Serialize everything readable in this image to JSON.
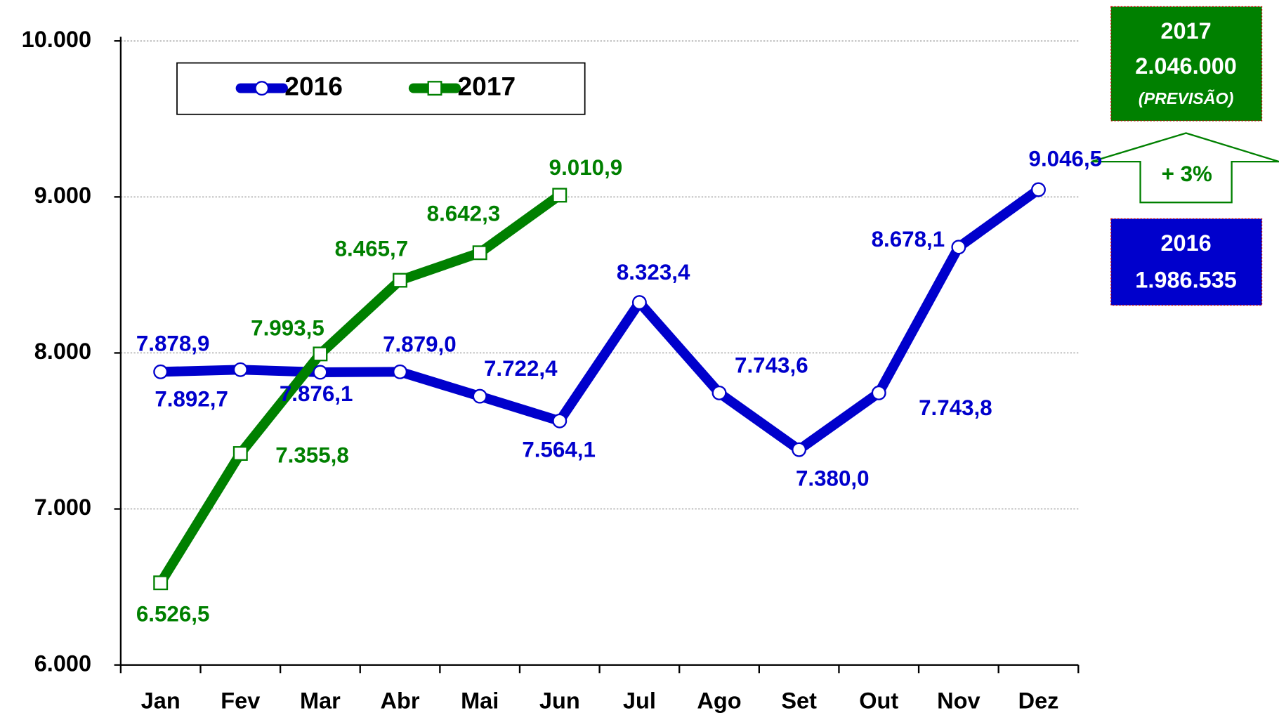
{
  "chart_data": {
    "type": "line",
    "categories": [
      "Jan",
      "Fev",
      "Mar",
      "Abr",
      "Mai",
      "Jun",
      "Jul",
      "Ago",
      "Set",
      "Out",
      "Nov",
      "Dez"
    ],
    "series": [
      {
        "name": "2016",
        "color": "#0000cc",
        "marker": "circle",
        "values": [
          7878.9,
          7892.7,
          7876.1,
          7879.0,
          7722.4,
          7564.1,
          8323.4,
          7743.6,
          7380.0,
          7743.8,
          8678.1,
          9046.5
        ],
        "value_labels": [
          "7.878,9",
          "7.892,7",
          "7.876,1",
          "7.879,0",
          "7.722,4",
          "7.564,1",
          "8.323,4",
          "7.743,6",
          "7.380,0",
          "7.743,8",
          "8.678,1",
          "9.046,5"
        ]
      },
      {
        "name": "2017",
        "color": "#008000",
        "marker": "square",
        "values": [
          6526.5,
          7355.8,
          7993.5,
          8465.7,
          8642.3,
          9010.9,
          null,
          null,
          null,
          null,
          null,
          null
        ],
        "value_labels": [
          "6.526,5",
          "7.355,8",
          "7.993,5",
          "8.465,7",
          "8.642,3",
          "9.010,9",
          null,
          null,
          null,
          null,
          null,
          null
        ]
      }
    ],
    "ylim": [
      6000,
      10000
    ],
    "yticks": [
      {
        "value": 6000,
        "label": "6.000"
      },
      {
        "value": 7000,
        "label": "7.000"
      },
      {
        "value": 8000,
        "label": "8.000"
      },
      {
        "value": 9000,
        "label": "9.000"
      },
      {
        "value": 10000,
        "label": "10.000"
      }
    ],
    "grid": true,
    "legend": "top-left",
    "annotations": {
      "box_2017": [
        "2017",
        "2.046.000",
        "(PREVISÃO)"
      ],
      "growth": "+ 3%",
      "box_2016": [
        "2016",
        "1.986.535"
      ]
    }
  }
}
